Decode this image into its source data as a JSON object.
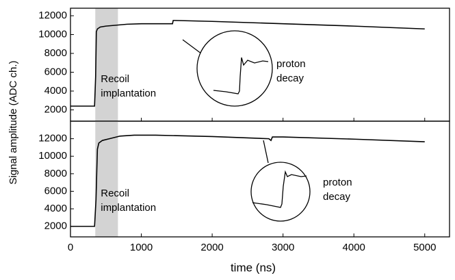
{
  "chart_data": [
    {
      "type": "line",
      "ylabel": "Signal amplitude (ADC ch.)",
      "xlim": [
        0,
        5350
      ],
      "ylim": [
        800,
        12800
      ],
      "yticks": [
        2000,
        4000,
        6000,
        8000,
        10000,
        12000
      ],
      "span": [
        350,
        670
      ],
      "span_color": "#d3d3d3",
      "annotation": [
        "Recoil",
        "implantation"
      ],
      "inset_label": [
        "proton",
        "decay"
      ],
      "x": [
        0,
        340,
        355,
        365,
        380,
        420,
        500,
        650,
        800,
        1000,
        1440,
        1450,
        1470,
        2000,
        3000,
        4000,
        5000
      ],
      "series": [
        {
          "color": "#000000",
          "values": [
            2400,
            2400,
            5500,
            10300,
            10600,
            10800,
            10900,
            11000,
            11100,
            11150,
            11150,
            11500,
            11500,
            11400,
            11150,
            10900,
            10600
          ]
        }
      ]
    },
    {
      "type": "line",
      "xlabel": "time (ns)",
      "xlim": [
        0,
        5350
      ],
      "ylim": [
        800,
        14000
      ],
      "xticks": [
        0,
        1000,
        2000,
        3000,
        4000,
        5000
      ],
      "yticks": [
        2000,
        4000,
        6000,
        8000,
        10000,
        12000
      ],
      "span": [
        350,
        670
      ],
      "span_color": "#d3d3d3",
      "annotation": [
        "Recoil",
        "implantation"
      ],
      "inset_label": [
        "proton",
        "decay"
      ],
      "x": [
        0,
        340,
        360,
        380,
        400,
        450,
        550,
        700,
        900,
        1200,
        2000,
        2800,
        2830,
        2850,
        3000,
        4000,
        5000
      ],
      "series": [
        {
          "color": "#000000",
          "values": [
            2000,
            2000,
            5000,
            10800,
            11500,
            11800,
            12000,
            12300,
            12400,
            12400,
            12250,
            12000,
            11800,
            12200,
            12200,
            11950,
            11650
          ]
        }
      ]
    }
  ]
}
